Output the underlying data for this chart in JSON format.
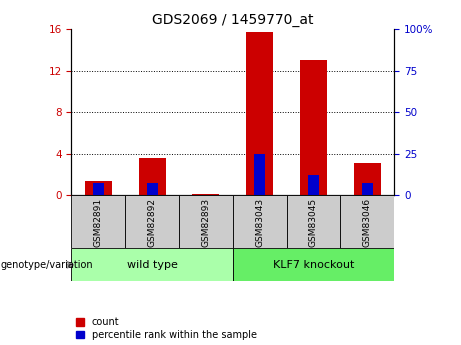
{
  "title": "GDS2069 / 1459770_at",
  "categories": [
    "GSM82891",
    "GSM82892",
    "GSM82893",
    "GSM83043",
    "GSM83045",
    "GSM83046"
  ],
  "count_values": [
    1.3,
    3.6,
    0.05,
    15.7,
    13.0,
    3.1
  ],
  "percentile_values": [
    7.0,
    7.0,
    0.0,
    25.0,
    12.0,
    7.0
  ],
  "ylim_left": [
    0,
    16
  ],
  "ylim_right": [
    0,
    100
  ],
  "yticks_left": [
    0,
    4,
    8,
    12,
    16
  ],
  "yticks_right": [
    0,
    25,
    50,
    75,
    100
  ],
  "ytick_labels_right": [
    "0",
    "25",
    "50",
    "75",
    "100%"
  ],
  "groups": [
    {
      "label": "wild type",
      "indices": [
        0,
        1,
        2
      ],
      "color": "#aaffaa"
    },
    {
      "label": "KLF7 knockout",
      "indices": [
        3,
        4,
        5
      ],
      "color": "#66ee66"
    }
  ],
  "group_label": "genotype/variation",
  "bar_color_count": "#cc0000",
  "bar_color_percentile": "#0000cc",
  "bar_width": 0.5,
  "bg_tick_area": "#cccccc",
  "legend_count": "count",
  "legend_percentile": "percentile rank within the sample",
  "title_fontsize": 10
}
